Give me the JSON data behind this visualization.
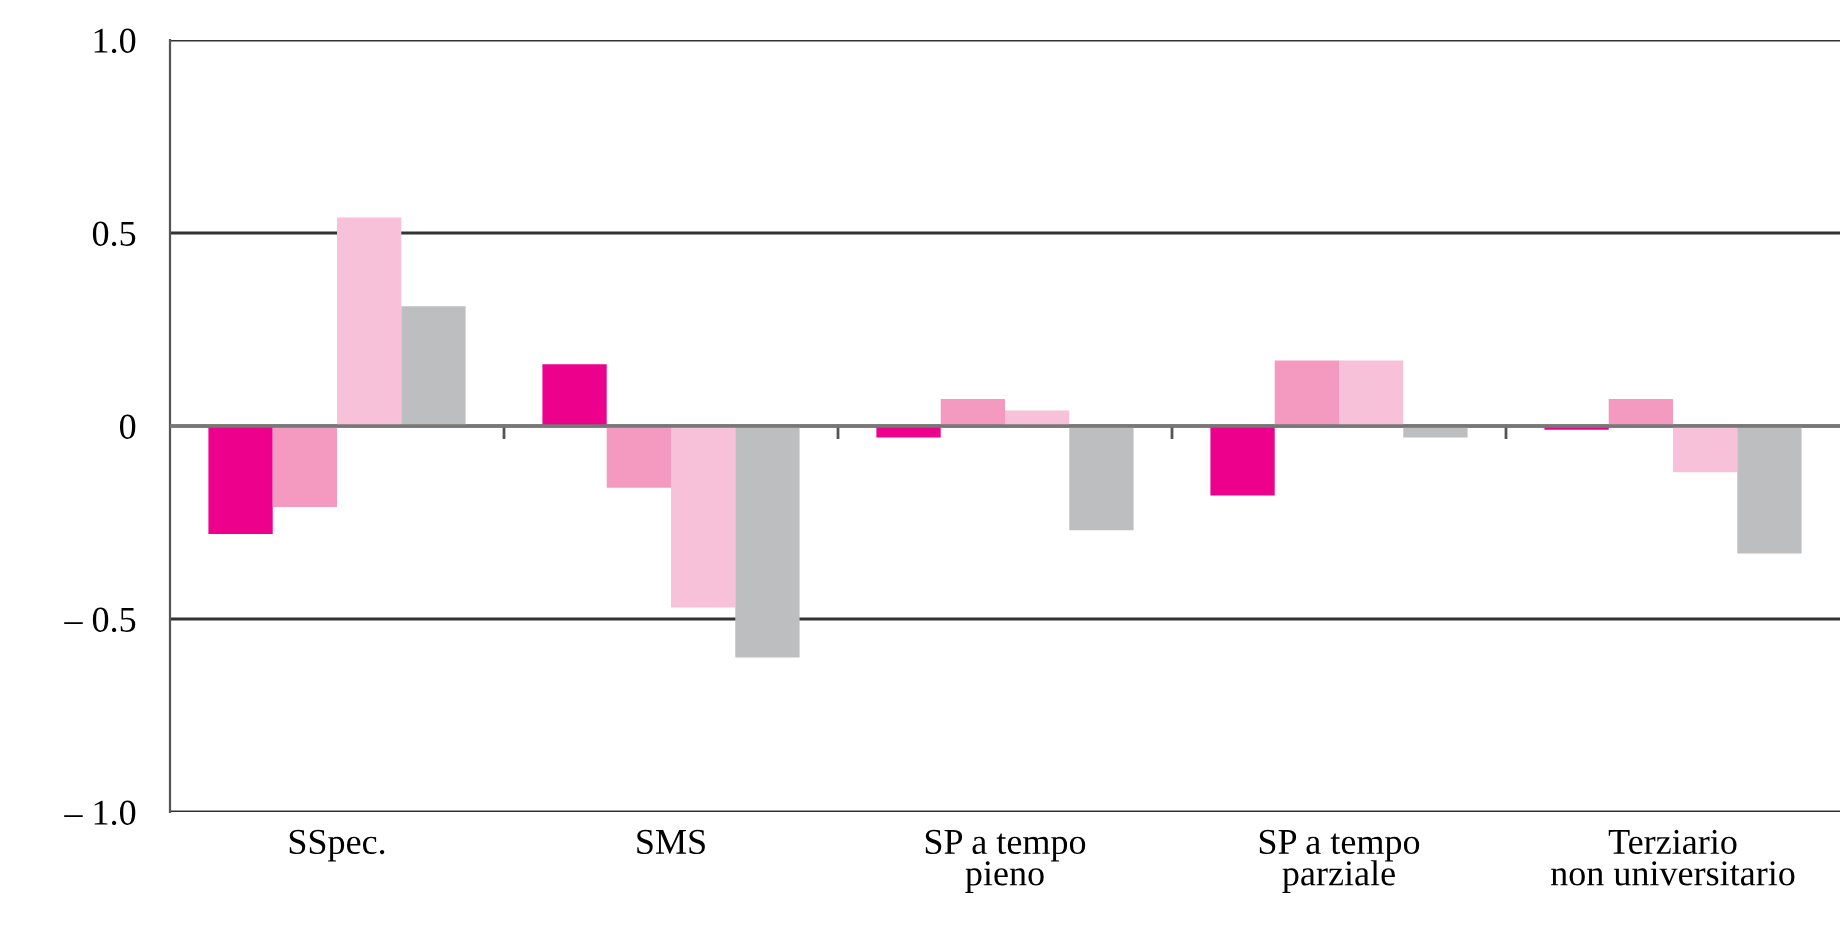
{
  "chart_data": {
    "type": "bar",
    "categories": [
      "SSpec.",
      "SMS",
      "SP a tempo\npieno",
      "SP a tempo\nparziale",
      "Terziario\nnon universitario"
    ],
    "series": [
      {
        "color": "#ec008c",
        "values": [
          -0.28,
          0.16,
          -0.03,
          -0.18,
          -0.01
        ]
      },
      {
        "color": "#f49ac1",
        "values": [
          -0.21,
          -0.16,
          0.07,
          0.17,
          0.07
        ]
      },
      {
        "color": "#f7c2d9",
        "values": [
          0.54,
          -0.47,
          0.04,
          0.17,
          -0.12
        ]
      },
      {
        "color": "#bcbec0",
        "values": [
          0.31,
          -0.6,
          -0.27,
          -0.03,
          -0.33
        ]
      }
    ],
    "ylim": [
      -1.0,
      1.0
    ],
    "yticks": [
      {
        "value": -1.0,
        "label": "– 1.0"
      },
      {
        "value": -0.5,
        "label": "– 0.5"
      },
      0,
      0.5,
      {
        "value": 1.0,
        "label": "1.0"
      }
    ],
    "grid": "y",
    "legend": false
  }
}
